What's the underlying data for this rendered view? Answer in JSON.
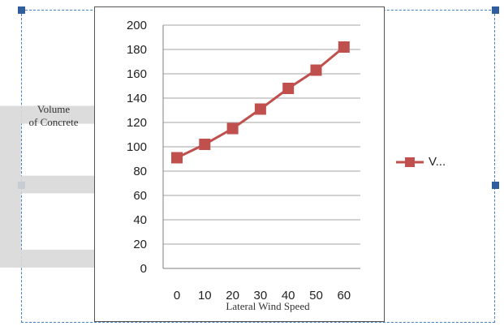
{
  "chart_data": {
    "type": "line",
    "xlabel": "Lateral Wind Speed",
    "ylabel": "Volume of Concrete",
    "ylabel_lines": [
      "Volume",
      "of Concrete"
    ],
    "x": [
      0,
      10,
      20,
      30,
      40,
      50,
      60
    ],
    "x_tick_labels": [
      "0",
      "10",
      "20",
      "30",
      "40",
      "50",
      "60"
    ],
    "y_tick_labels": [
      "0",
      "20",
      "40",
      "60",
      "80",
      "100",
      "120",
      "140",
      "160",
      "180",
      "200"
    ],
    "ylim": [
      0,
      200
    ],
    "grid": true,
    "legend_position": "right",
    "series": [
      {
        "name": "V...",
        "color": "#c0504d",
        "marker": "square",
        "values": [
          91,
          102,
          115,
          131,
          148,
          163,
          182
        ]
      }
    ]
  },
  "watermark": {
    "text": "ER"
  },
  "colors": {
    "series": "#c0504d",
    "selection_frame": "#4a7fc1",
    "gridline": "#a6a6a6"
  }
}
